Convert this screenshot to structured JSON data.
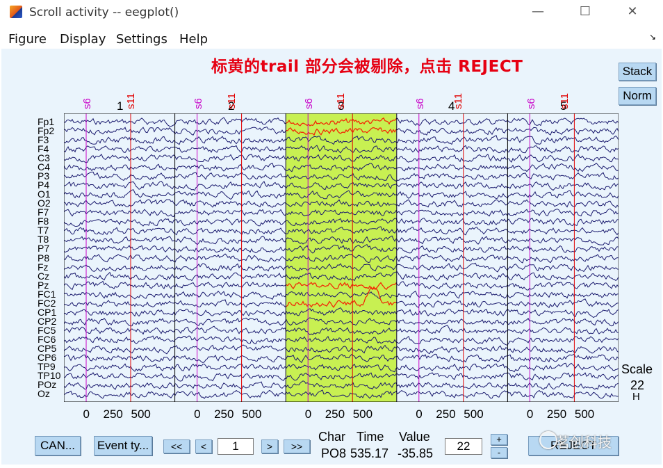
{
  "window": {
    "title": "Scroll activity -- eegplot()",
    "minimize": "—",
    "maximize": "☐",
    "close": "✕"
  },
  "menu": {
    "items": [
      "Figure",
      "Display",
      "Settings",
      "Help"
    ],
    "dock": "↘"
  },
  "annotation": "标黄的trail 部分会被剔除，点击 REJECT",
  "right_buttons": {
    "stack": "Stack",
    "norm": "Norm"
  },
  "scale": {
    "label": "Scale",
    "value": "22",
    "bar": "H"
  },
  "epochs": [
    "1",
    "2",
    "3",
    "4",
    "5"
  ],
  "epoch_ticks": [
    "0",
    "250",
    "500"
  ],
  "event_labels": [
    "s6",
    "s11"
  ],
  "channels": [
    "Fp1",
    "Fp2",
    "F3",
    "F4",
    "C3",
    "C4",
    "P3",
    "P4",
    "O1",
    "O2",
    "F7",
    "F8",
    "T7",
    "T8",
    "P7",
    "P8",
    "Fz",
    "Cz",
    "Pz",
    "FC1",
    "FC2",
    "CP1",
    "CP2",
    "FC5",
    "FC6",
    "CP5",
    "CP6",
    "TP9",
    "TP10",
    "POz",
    "Oz"
  ],
  "bottom": {
    "cancel": "CAN...",
    "event_type": "Event ty...",
    "prev_page": "<<",
    "prev": "<",
    "epoch_input": "1",
    "next": ">",
    "next_page": ">>",
    "char_header": "Char",
    "time_header": "Time",
    "value_header": "Value",
    "char_value": "PO8",
    "time_value": "535.17",
    "value_value": "-35.85",
    "scale_input": "22",
    "plus": "+",
    "minus": "-",
    "reject": "REJECT"
  },
  "watermark": "茗创科技",
  "colors": {
    "trace": "#1a1a6e",
    "rejected_fill": "#c8f052",
    "rejected_trace": "#ff2a00",
    "event_s6": "#c800c8",
    "event_s11": "#e00000",
    "annotation": "#e60012"
  }
}
